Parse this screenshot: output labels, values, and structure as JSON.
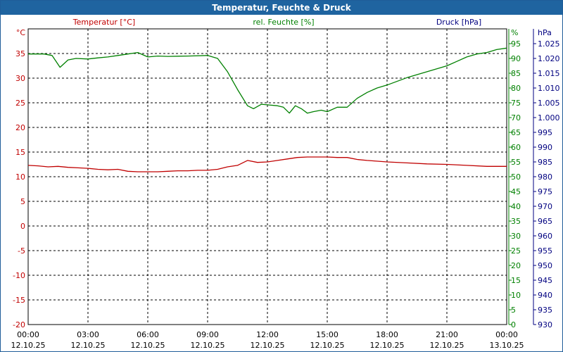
{
  "title": "Temperatur, Feuchte & Druck",
  "colors": {
    "temperature": "#c00000",
    "humidity": "#008000",
    "pressure": "#000080",
    "grid": "#000000",
    "titlebar": "#1f64a0"
  },
  "chart_data": {
    "type": "line",
    "title": "Temperatur, Feuchte & Druck",
    "grid": true,
    "x_ticks": [
      {
        "time": "00:00",
        "date": "12.10.25"
      },
      {
        "time": "03:00",
        "date": "12.10.25"
      },
      {
        "time": "06:00",
        "date": "12.10.25"
      },
      {
        "time": "09:00",
        "date": "12.10.25"
      },
      {
        "time": "12:00",
        "date": "12.10.25"
      },
      {
        "time": "15:00",
        "date": "12.10.25"
      },
      {
        "time": "18:00",
        "date": "12.10.25"
      },
      {
        "time": "21:00",
        "date": "12.10.25"
      },
      {
        "time": "00:00",
        "date": "13.10.25"
      }
    ],
    "xlim_hours": [
      0,
      24
    ],
    "axes": {
      "temperature": {
        "label": "Temperatur [°C]",
        "unit": "°C",
        "ylim": [
          -20,
          40
        ],
        "ticks": [
          -20,
          -15,
          -10,
          -5,
          0,
          5,
          10,
          15,
          20,
          25,
          30,
          35
        ]
      },
      "humidity": {
        "label": "rel. Feuchte [%]",
        "unit": "%",
        "ylim": [
          0,
          100
        ],
        "ticks": [
          0,
          5,
          10,
          15,
          20,
          25,
          30,
          35,
          40,
          45,
          50,
          55,
          60,
          65,
          70,
          75,
          80,
          85,
          90,
          95
        ]
      },
      "pressure": {
        "label": "Druck [hPa]",
        "unit": "hPa",
        "ylim": [
          930,
          1030
        ],
        "ticks": [
          "930",
          "935",
          "940",
          "945",
          "950",
          "955",
          "960",
          "965",
          "970",
          "975",
          "980",
          "985",
          "990",
          "995",
          "1.000",
          "1.005",
          "1.010",
          "1.015",
          "1.020",
          "1.025"
        ]
      }
    },
    "series": [
      {
        "name": "Temperatur [°C]",
        "axis": "temperature",
        "color": "#c00000",
        "x": [
          0,
          0.5,
          1,
          1.5,
          2,
          2.5,
          3,
          3.5,
          4,
          4.5,
          5,
          5.5,
          6,
          6.5,
          7,
          7.5,
          8,
          8.5,
          9,
          9.5,
          10,
          10.5,
          11,
          11.5,
          12,
          12.5,
          13,
          13.5,
          14,
          14.5,
          15,
          15.5,
          16,
          16.5,
          17,
          18,
          19,
          20,
          21,
          22,
          23,
          24
        ],
        "y": [
          12.3,
          12.2,
          12.0,
          12.1,
          11.9,
          11.8,
          11.7,
          11.5,
          11.4,
          11.5,
          11.1,
          11.0,
          11.0,
          11.0,
          11.1,
          11.2,
          11.2,
          11.3,
          11.3,
          11.5,
          12.0,
          12.3,
          13.3,
          12.9,
          13.0,
          13.3,
          13.6,
          13.9,
          14.0,
          14.0,
          14.0,
          13.9,
          13.9,
          13.5,
          13.3,
          13.0,
          12.8,
          12.6,
          12.5,
          12.3,
          12.1,
          12.1
        ]
      },
      {
        "name": "rel. Feuchte [%]",
        "axis": "humidity",
        "color": "#008000",
        "x": [
          0,
          0.8,
          1.2,
          1.6,
          2.0,
          2.4,
          3.0,
          3.5,
          4.0,
          4.5,
          5.0,
          5.5,
          6.0,
          6.5,
          7.0,
          8.0,
          9.0,
          9.5,
          10.0,
          10.5,
          11.0,
          11.3,
          11.7,
          12.0,
          12.5,
          12.8,
          13.1,
          13.4,
          13.7,
          14.0,
          14.3,
          14.7,
          15.0,
          15.5,
          16.0,
          16.5,
          17.0,
          17.5,
          18.0,
          19.0,
          20.0,
          21.0,
          21.5,
          22.0,
          22.5,
          23.0,
          23.5,
          24.0
        ],
        "y": [
          91.5,
          91.5,
          91.0,
          87.0,
          89.5,
          90.0,
          89.8,
          90.2,
          90.5,
          91.0,
          91.5,
          92.0,
          90.5,
          90.8,
          90.7,
          90.8,
          91.0,
          90.0,
          85.5,
          79.5,
          74.0,
          73.0,
          74.5,
          74.3,
          74.0,
          73.5,
          71.5,
          74.0,
          73.0,
          71.5,
          72.0,
          72.5,
          72.0,
          73.5,
          73.5,
          76.5,
          78.5,
          80.0,
          81.0,
          83.5,
          85.5,
          87.5,
          89.0,
          90.5,
          91.5,
          92.0,
          93.0,
          93.5
        ]
      }
    ]
  }
}
